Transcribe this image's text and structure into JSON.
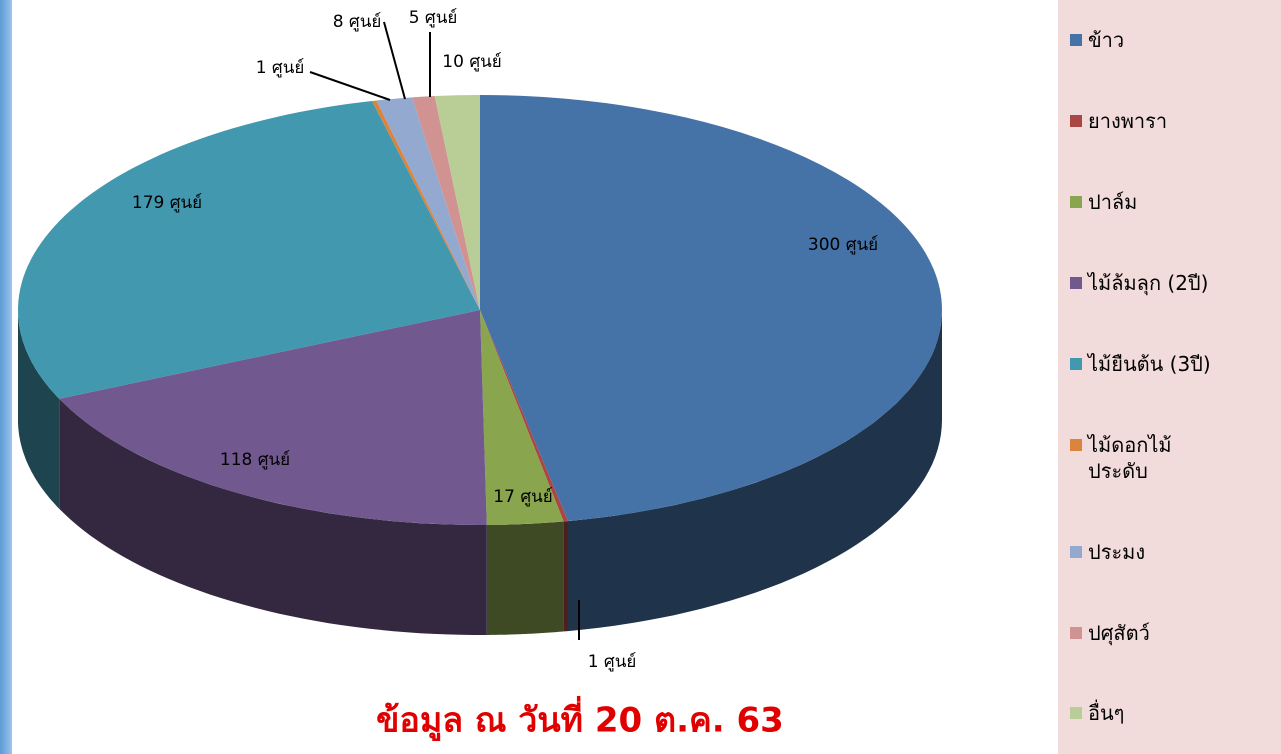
{
  "chart_data": {
    "type": "pie",
    "annotation": "ข้อมูล ณ วันที่ 20 ต.ค. 63",
    "categories": [
      "ข้าว",
      "ยางพารา",
      "ปาล์ม",
      "ไม้ล้มลุก (2ปี)",
      "ไม้ยืนต้น (3ปี)",
      "ไม้ดอกไม้ประดับ",
      "ประมง",
      "ปศุสัตว์",
      "อื่นๆ"
    ],
    "values": [
      300,
      1,
      17,
      118,
      179,
      1,
      8,
      5,
      10
    ],
    "value_labels": [
      "300 ศูนย์",
      "1 ศูนย์",
      "17 ศูนย์",
      "118 ศูนย์",
      "179 ศูนย์",
      "1 ศูนย์",
      "8 ศูนย์",
      "5 ศูนย์",
      "10 ศูนย์"
    ],
    "colors": [
      "#4572a7",
      "#aa4643",
      "#89a54e",
      "#71588f",
      "#4198af",
      "#db843d",
      "#93a9cf",
      "#d19392",
      "#b9cd96"
    ],
    "legend": "right"
  }
}
